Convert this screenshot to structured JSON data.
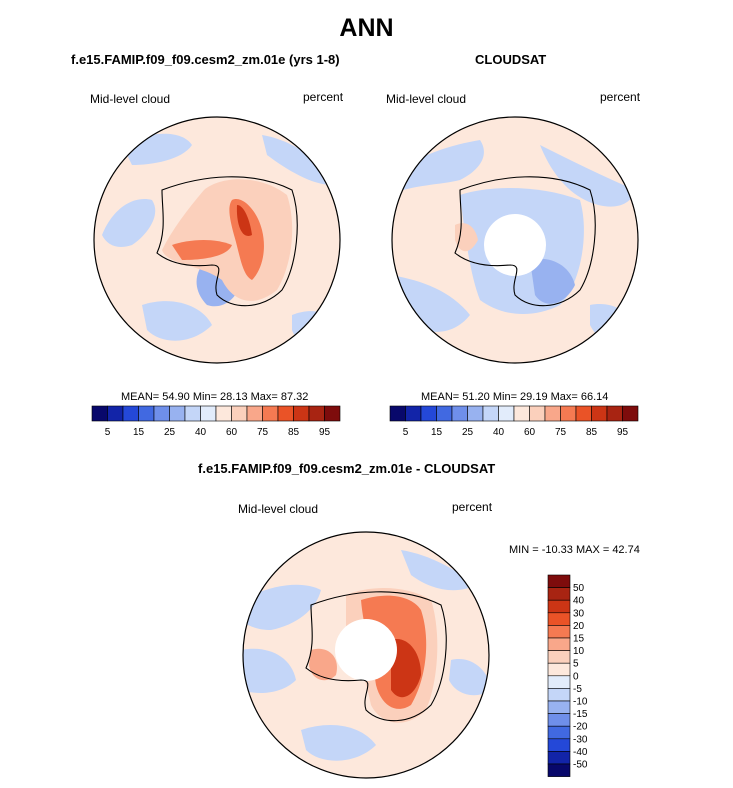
{
  "main_title": "ANN",
  "panels": [
    {
      "title": "f.e15.FAMIP.f09_f09.cesm2_zm.01e (yrs 1-8)",
      "variable": "Mid-level cloud",
      "units": "percent",
      "stats": "MEAN= 54.90  Min= 28.13  Max= 87.32"
    },
    {
      "title": "CLOUDSAT",
      "variable": "Mid-level cloud",
      "units": "percent",
      "stats": "MEAN= 51.20  Min= 29.19  Max= 66.14"
    },
    {
      "title": "f.e15.FAMIP.f09_f09.cesm2_zm.01e - CLOUDSAT",
      "variable": "Mid-level cloud",
      "units": "percent",
      "stats": "MIN = -10.33 MAX =  42.74"
    }
  ],
  "colorbar_levels": {
    "fields": [
      "5",
      "15",
      "25",
      "40",
      "60",
      "75",
      "85",
      "95"
    ],
    "difference": [
      "50",
      "40",
      "30",
      "20",
      "15",
      "10",
      "5",
      "0",
      "-5",
      "-10",
      "-15",
      "-20",
      "-30",
      "-40",
      "-50"
    ]
  },
  "colors": {
    "field_scale": [
      "#08086b",
      "#1224a8",
      "#2448d8",
      "#4169e1",
      "#6f8fea",
      "#98b2f0",
      "#c4d6f8",
      "#e2ecfb",
      "#fde8dc",
      "#fbd0bc",
      "#f9a78a",
      "#f57a52",
      "#ea5327",
      "#cc3515",
      "#a82412",
      "#7e0c0c"
    ],
    "diff_scale": [
      "#7e0c0c",
      "#a82412",
      "#cc3515",
      "#ea5327",
      "#f57a52",
      "#f9a78a",
      "#fbd0bc",
      "#fde8dc",
      "#e2ecfb",
      "#c4d6f8",
      "#98b2f0",
      "#6f8fea",
      "#4169e1",
      "#2448d8",
      "#1224a8",
      "#08086b"
    ],
    "background_fill": "#fde8dc",
    "light_blue": "#c4d6f8",
    "mid_blue": "#98b2f0"
  },
  "chart_data": [
    {
      "type": "heatmap",
      "title": "f.e15.FAMIP.f09_f09.cesm2_zm.01e (yrs 1-8)",
      "variable": "Mid-level cloud",
      "units": "percent",
      "projection": "south polar stereographic",
      "mean": 54.9,
      "min": 28.13,
      "max": 87.32,
      "colorbar_ticks": [
        5,
        15,
        25,
        40,
        60,
        75,
        85,
        95
      ]
    },
    {
      "type": "heatmap",
      "title": "CLOUDSAT",
      "variable": "Mid-level cloud",
      "units": "percent",
      "projection": "south polar stereographic",
      "missing_polar_cap": true,
      "mean": 51.2,
      "min": 29.19,
      "max": 66.14,
      "colorbar_ticks": [
        5,
        15,
        25,
        40,
        60,
        75,
        85,
        95
      ]
    },
    {
      "type": "heatmap",
      "title": "f.e15.FAMIP.f09_f09.cesm2_zm.01e - CLOUDSAT",
      "variable": "Mid-level cloud",
      "units": "percent",
      "projection": "south polar stereographic",
      "missing_polar_cap": true,
      "min": -10.33,
      "max": 42.74,
      "colorbar_ticks": [
        -50,
        -40,
        -30,
        -20,
        -15,
        -10,
        -5,
        0,
        5,
        10,
        15,
        20,
        30,
        40,
        50
      ]
    }
  ]
}
